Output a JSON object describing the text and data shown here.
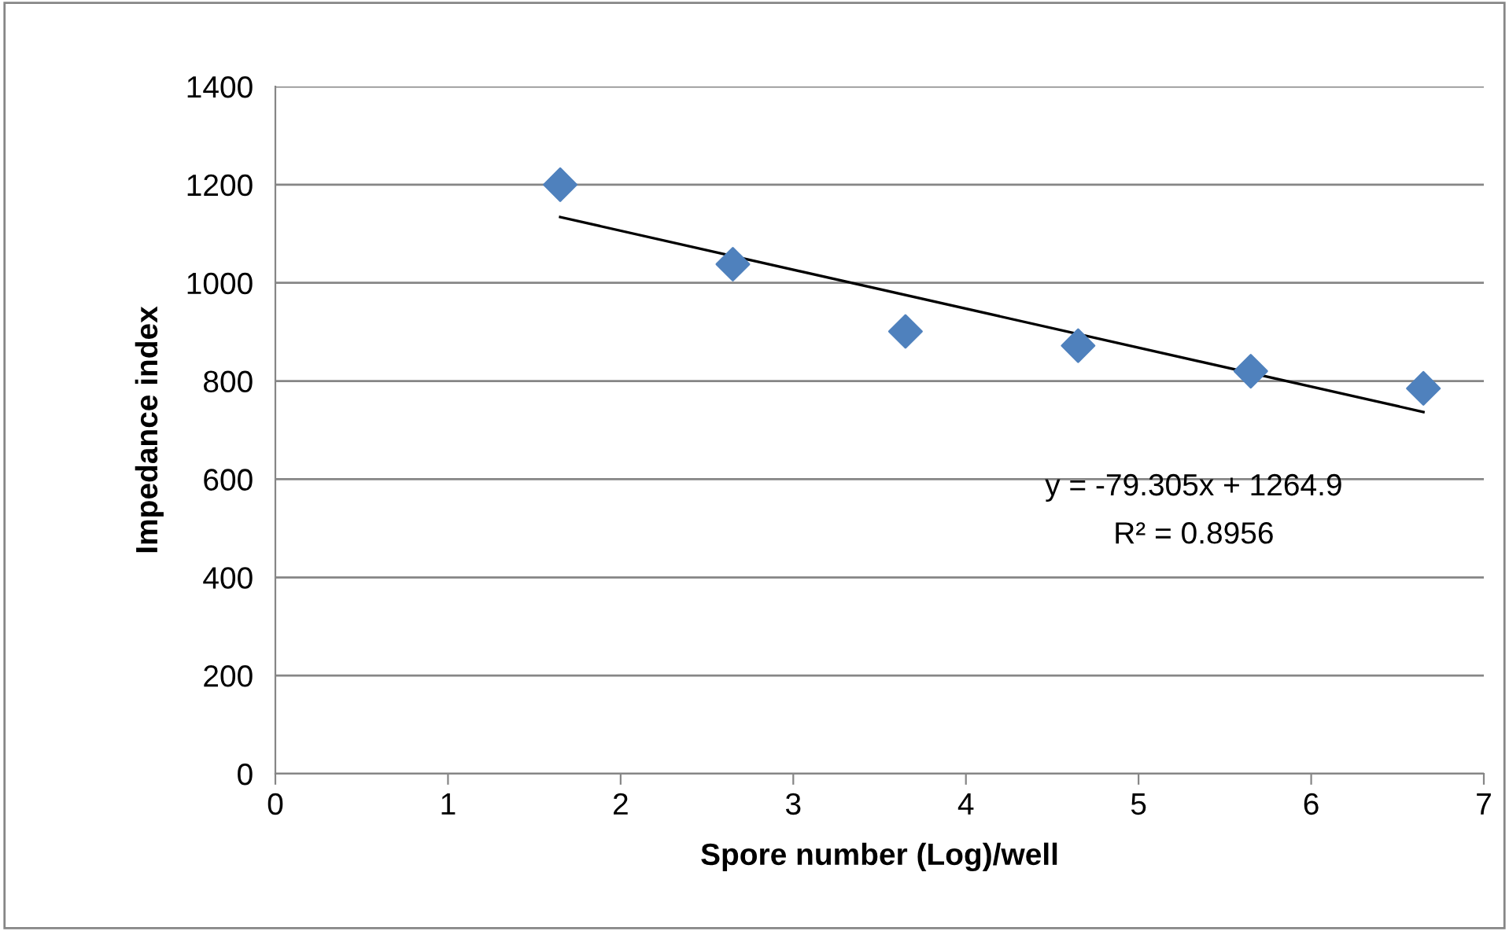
{
  "chart_data": {
    "type": "scatter",
    "xlabel": "Spore number (Log)/well",
    "ylabel": "Impedance index",
    "annotations": [
      "y = -79.305x + 1264.9",
      "R² = 0.8956"
    ],
    "series": [
      {
        "color": "#4f81bd",
        "marker": "diamond",
        "x": [
          1.65,
          2.65,
          3.65,
          4.65,
          5.65,
          6.65
        ],
        "values": [
          1200,
          1038,
          901,
          872,
          820,
          785
        ]
      },
      {
        "type": "line",
        "color": "#000000",
        "marker": "none",
        "x": [
          1.65,
          6.65
        ],
        "values": [
          1134,
          737
        ]
      }
    ],
    "xlim": [
      0,
      7
    ],
    "xticks": [
      0,
      1,
      2,
      3,
      4,
      5,
      6,
      7
    ],
    "ylim": [
      0,
      1400
    ],
    "yticks": [
      0,
      200,
      400,
      600,
      800,
      1000,
      1200,
      1400
    ],
    "grid": "y",
    "legend": false
  }
}
